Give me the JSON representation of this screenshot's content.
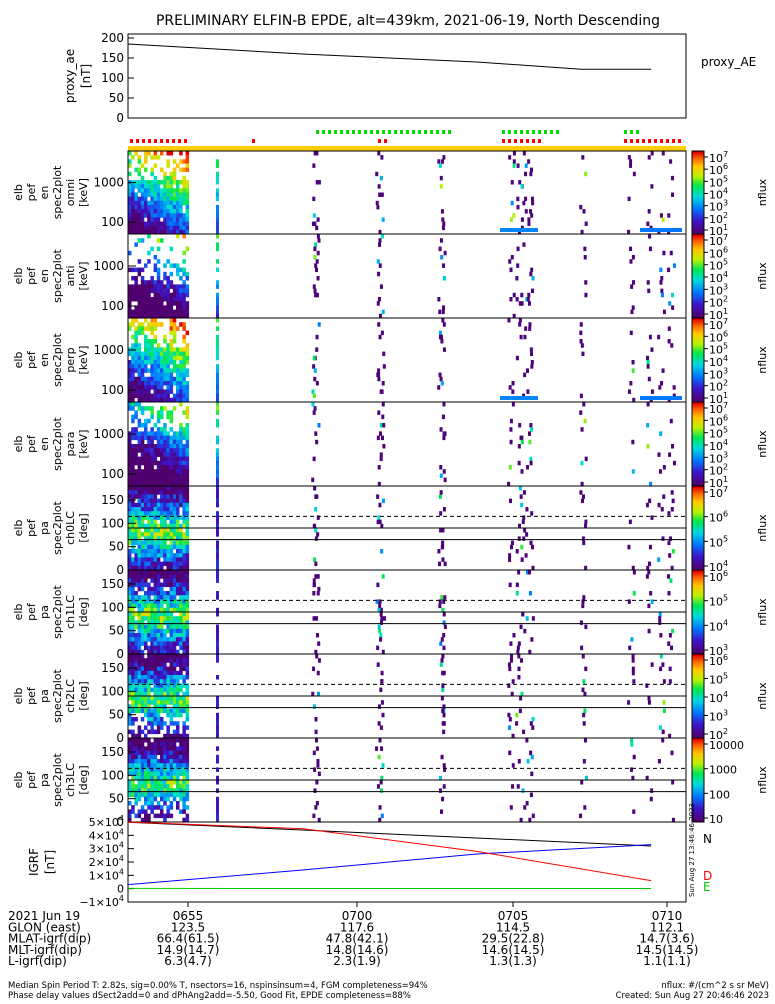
{
  "title": "PRELIMINARY ELFIN-B EPDE, alt=439km, 2021-06-19, North Descending",
  "chart_data": [
    {
      "type": "line",
      "name": "proxy_ae",
      "ylabel": [
        "proxy_ae",
        "[nT]"
      ],
      "yticks": [
        "200",
        "150",
        "100",
        "50",
        "0"
      ],
      "ylim": [
        0,
        210
      ],
      "legend": "proxy_AE",
      "x_minutes": [
        0,
        5,
        10,
        13,
        15
      ],
      "values": [
        185,
        160,
        140,
        122,
        122
      ]
    },
    {
      "type": "heatmap",
      "name": "omni",
      "ylabel": [
        "elb",
        "pef",
        "en",
        "spec2plot",
        "omni",
        "[keV]"
      ],
      "yticks": [
        "1000",
        "100"
      ],
      "colorbar_ticks": [
        "10^7",
        "10^6",
        "10^5",
        "10^4",
        "10^3",
        "10^2",
        "10^1"
      ],
      "colorbar_label": "nflux"
    },
    {
      "type": "heatmap",
      "name": "anti",
      "ylabel": [
        "elb",
        "pef",
        "en",
        "spec2plot",
        "anti",
        "[keV]"
      ],
      "yticks": [
        "1000",
        "100"
      ],
      "colorbar_ticks": [
        "10^7",
        "10^6",
        "10^5",
        "10^4",
        "10^3",
        "10^2",
        "10^1"
      ],
      "colorbar_label": "nflux"
    },
    {
      "type": "heatmap",
      "name": "perp",
      "ylabel": [
        "elb",
        "pef",
        "en",
        "spec2plot",
        "perp",
        "[keV]"
      ],
      "yticks": [
        "1000",
        "100"
      ],
      "colorbar_ticks": [
        "10^7",
        "10^6",
        "10^5",
        "10^4",
        "10^3",
        "10^2",
        "10^1"
      ],
      "colorbar_label": "nflux"
    },
    {
      "type": "heatmap",
      "name": "para",
      "ylabel": [
        "elb",
        "pef",
        "en",
        "spec2plot",
        "para",
        "[keV]"
      ],
      "yticks": [
        "1000",
        "100"
      ],
      "colorbar_ticks": [
        "10^7",
        "10^6",
        "10^5",
        "10^4",
        "10^3",
        "10^2",
        "10^1"
      ],
      "colorbar_label": "nflux"
    },
    {
      "type": "heatmap",
      "name": "ch0LC",
      "ylabel": [
        "elb",
        "pef",
        "pa",
        "spec2plot",
        "ch0LC",
        "[deg]"
      ],
      "yticks": [
        "150",
        "100",
        "50",
        "0"
      ],
      "colorbar_ticks": [
        "10^7",
        "10^6",
        "10^5",
        "10^4"
      ],
      "colorbar_label": "nflux"
    },
    {
      "type": "heatmap",
      "name": "ch1LC",
      "ylabel": [
        "elb",
        "pef",
        "pa",
        "spec2plot",
        "ch1LC",
        "[deg]"
      ],
      "yticks": [
        "150",
        "100",
        "50",
        "0"
      ],
      "colorbar_ticks": [
        "10^6",
        "10^5",
        "10^4",
        "10^3"
      ],
      "colorbar_label": "nflux"
    },
    {
      "type": "heatmap",
      "name": "ch2LC",
      "ylabel": [
        "elb",
        "pef",
        "pa",
        "spec2plot",
        "ch2LC",
        "[deg]"
      ],
      "yticks": [
        "150",
        "100",
        "50",
        "0"
      ],
      "colorbar_ticks": [
        "10^6",
        "10^5",
        "10^4",
        "10^3",
        "10^2"
      ],
      "colorbar_label": "nflux"
    },
    {
      "type": "heatmap",
      "name": "ch3LC",
      "ylabel": [
        "elb",
        "pef",
        "pa",
        "spec2plot",
        "ch3LC",
        "[deg]"
      ],
      "yticks": [
        "150",
        "100",
        "50",
        "0"
      ],
      "colorbar_ticks": [
        "10000",
        "1000",
        "100",
        "10"
      ],
      "colorbar_label": "nflux"
    },
    {
      "type": "line",
      "name": "igrf",
      "ylabel": [
        "IGRF",
        "[nT]"
      ],
      "yticks": [
        "5×10^4",
        "4×10^4",
        "3×10^4",
        "2×10^4",
        "1×10^4",
        "0",
        "−1×10^4"
      ],
      "ylim": [
        -10000,
        50000
      ],
      "x_minutes": [
        0,
        5,
        10,
        15
      ],
      "series": [
        {
          "name": "N",
          "values": [
            49800,
            44000,
            38000,
            32000
          ]
        },
        {
          "name": "N",
          "values": [
            3000,
            14000,
            26000,
            33000
          ]
        },
        {
          "name": "D",
          "values": [
            50000,
            45000,
            28000,
            6000
          ]
        },
        {
          "name": "E",
          "values": [
            200,
            150,
            120,
            100
          ]
        }
      ],
      "colors": [
        "#000000",
        "#0000ff",
        "#ff0000",
        "#00cc00"
      ]
    }
  ],
  "timestamp_vertical": "Sun Aug 27 13:46:46 2023",
  "footer": {
    "rows": [
      [
        "2021 Jun 19",
        "0655",
        "0700",
        "0705",
        "0710"
      ],
      [
        "GLON (east)",
        "123.5",
        "117.6",
        "114.5",
        "112.1"
      ],
      [
        "MLAT-igrf(dip)",
        "66.4(61.5)",
        "47.8(42.1)",
        "29.5(22.8)",
        "14.7(3.6)"
      ],
      [
        "MLT-igrf(dip)",
        "14.9(14.7)",
        "14.8(14.6)",
        "14.6(14.5)",
        "14.5(14.5)"
      ],
      [
        "L-igrf(dip)",
        "6.3(4.7)",
        "2.3(1.9)",
        "1.3(1.3)",
        "1.1(1.1)"
      ]
    ],
    "note1": "Median Spin Period T: 2.82s, sig=0.00% T, nsectors=16, nspinsinsum=4, FGM completeness=94%",
    "note2": "Phase delay values dSect2add=0 and dPhAng2add=-5.50, Good Fit, EPDE completeness=88%",
    "units": "nflux: #/(cm^2 s sr MeV)",
    "created": "Created: Sun Aug 27 20:46:46 2023"
  }
}
